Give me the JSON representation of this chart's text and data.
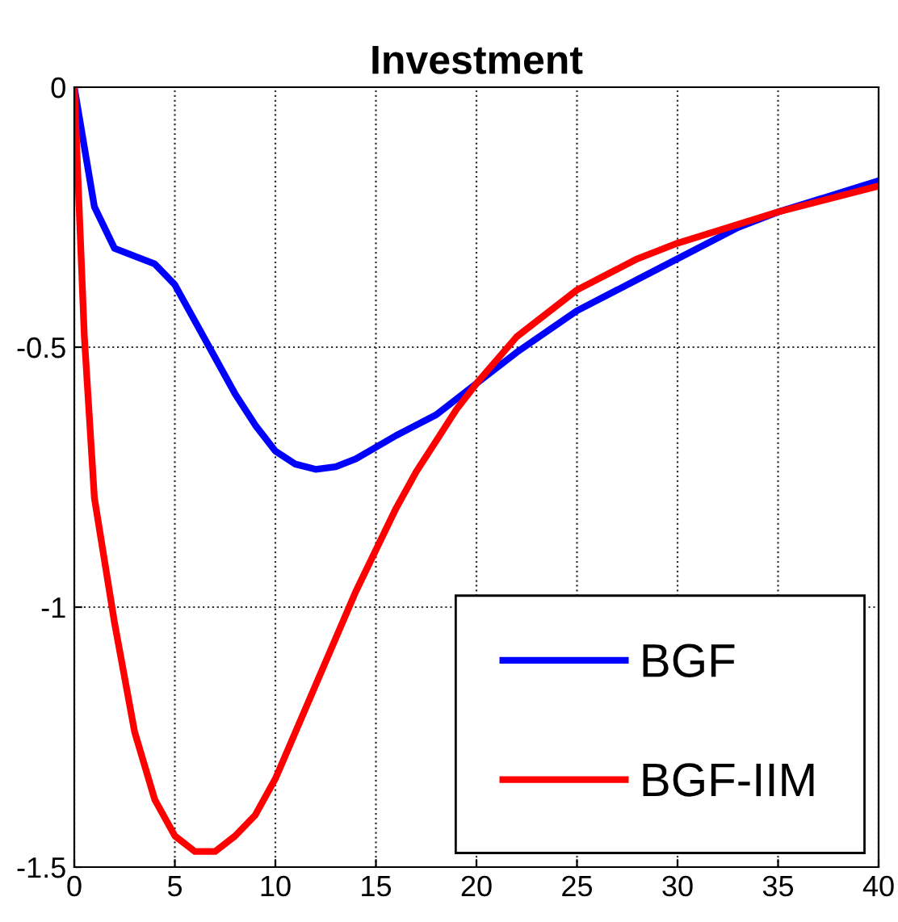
{
  "chart_data": {
    "type": "line",
    "title": "Investment",
    "series": [
      {
        "name": "BGF",
        "color": "#0000ff",
        "x": [
          0,
          1,
          2,
          4,
          5,
          6,
          7,
          8,
          9,
          10,
          11,
          12,
          13,
          14,
          16,
          18,
          20,
          22,
          25,
          28,
          30,
          33,
          35,
          40
        ],
        "values": [
          0,
          -0.23,
          -0.31,
          -0.34,
          -0.38,
          -0.45,
          -0.52,
          -0.59,
          -0.65,
          -0.7,
          -0.725,
          -0.735,
          -0.73,
          -0.715,
          -0.67,
          -0.63,
          -0.57,
          -0.51,
          -0.43,
          -0.37,
          -0.33,
          -0.27,
          -0.24,
          -0.18
        ]
      },
      {
        "name": "BGF-IIM",
        "color": "#ff0000",
        "x": [
          0,
          0.5,
          1,
          2,
          3,
          4,
          5,
          6,
          7,
          8,
          9,
          10,
          11,
          12,
          13,
          14,
          15,
          16,
          17,
          18,
          19,
          20,
          22,
          25,
          28,
          30,
          35,
          40
        ],
        "values": [
          0,
          -0.48,
          -0.79,
          -1.03,
          -1.24,
          -1.37,
          -1.44,
          -1.47,
          -1.47,
          -1.44,
          -1.4,
          -1.33,
          -1.24,
          -1.15,
          -1.06,
          -0.97,
          -0.89,
          -0.81,
          -0.74,
          -0.68,
          -0.62,
          -0.57,
          -0.48,
          -0.39,
          -0.33,
          -0.3,
          -0.24,
          -0.19
        ]
      }
    ],
    "xlim": [
      0,
      40
    ],
    "xticks": [
      0,
      5,
      10,
      15,
      20,
      25,
      30,
      35,
      40
    ],
    "ylim": [
      -1.5,
      0
    ],
    "yticks": [
      {
        "value": -1.5,
        "label": "-1.5"
      },
      {
        "value": -1,
        "label": "-1"
      },
      {
        "value": -0.5,
        "label": "-0.5"
      },
      0
    ],
    "grid": true,
    "legend": "bottom right",
    "line_style": "solid"
  }
}
